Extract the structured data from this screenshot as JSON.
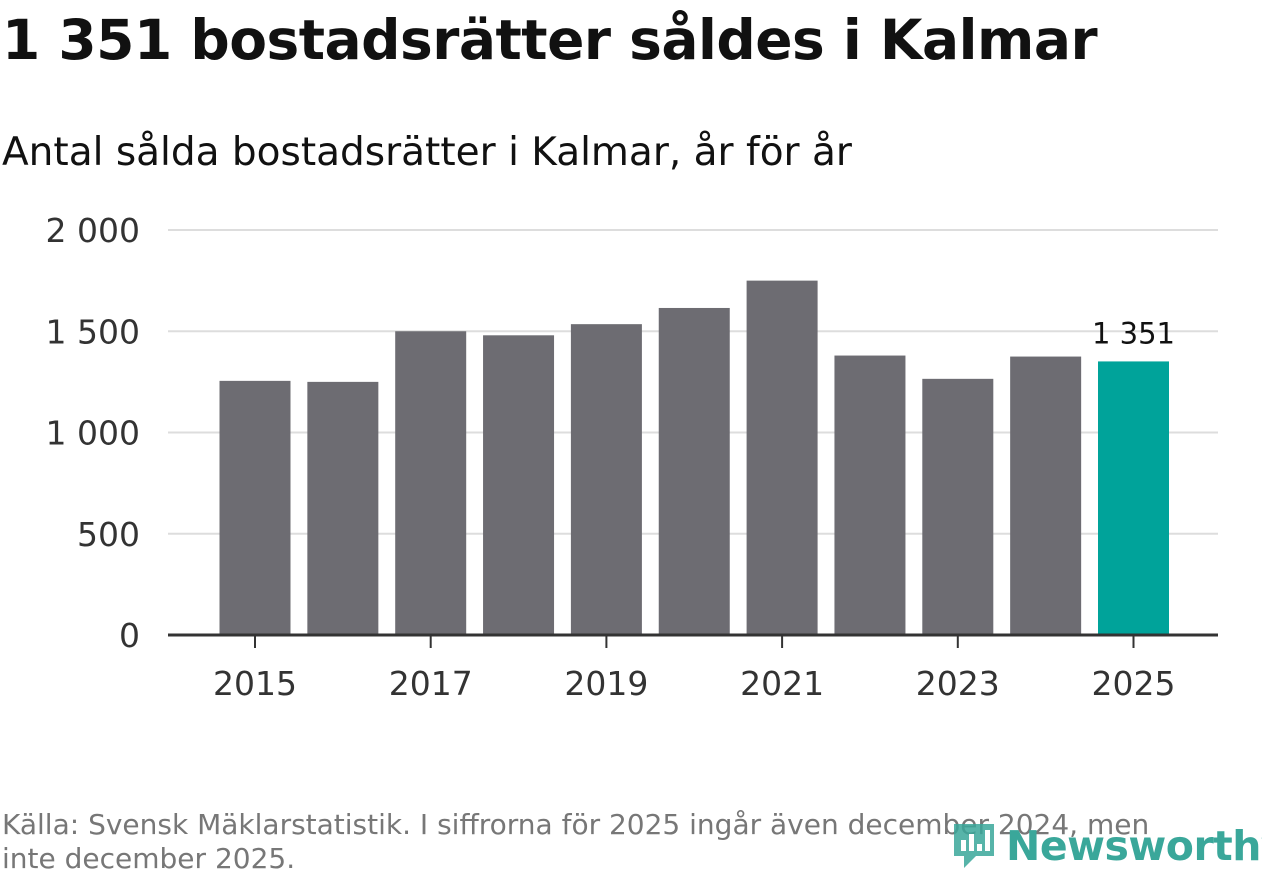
{
  "title": "1 351 bostadsrätter såldes i Kalmar",
  "subtitle": "Antal sålda bostadsrätter i Kalmar, år för år",
  "source": "Källa: Svensk Mäklarstatistik. I siffrorna för 2025 ingår även december 2024, men inte december 2025.",
  "logo": {
    "text": "Newsworthy",
    "icon": "newsworthy-logo-icon"
  },
  "colors": {
    "bar": "#6d6c72",
    "highlight": "#00a39a",
    "grid": "#dddddd",
    "axis": "#333333",
    "logo": "#3aa79a"
  },
  "chart_data": {
    "type": "bar",
    "title": "Antal sålda bostadsrätter i Kalmar, år för år",
    "xlabel": "",
    "ylabel": "",
    "categories": [
      "2015",
      "2016",
      "2017",
      "2018",
      "2019",
      "2020",
      "2021",
      "2022",
      "2023",
      "2024",
      "2025"
    ],
    "values": [
      1255,
      1250,
      1500,
      1480,
      1535,
      1615,
      1750,
      1380,
      1265,
      1375,
      1351
    ],
    "highlight_index": 10,
    "x_tick_labels": [
      "2015",
      "2017",
      "2019",
      "2021",
      "2023",
      "2025"
    ],
    "y_ticks": [
      0,
      500,
      1000,
      1500,
      2000
    ],
    "y_tick_labels": [
      "0",
      "500",
      "1 000",
      "1 500",
      "2 000"
    ],
    "ylim": [
      0,
      2000
    ],
    "grid": true,
    "data_labels": [
      {
        "index": 10,
        "text": "1 351"
      }
    ]
  }
}
